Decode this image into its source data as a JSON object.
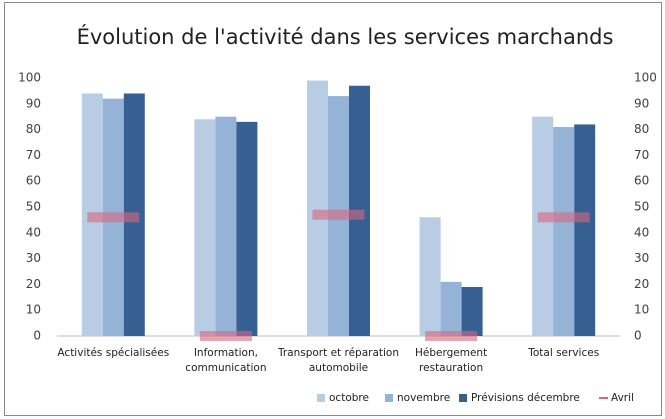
{
  "chart_data": {
    "type": "bar",
    "title": "Évolution de l'activité dans les services marchands",
    "categories": [
      "Activités spécialisées",
      "Information,\ncommunication",
      "Transport et réparation\nautomobile",
      "Hébergement\nrestauration",
      "Total services"
    ],
    "series": [
      {
        "name": "octobre",
        "color": "#b8cce4",
        "values": [
          94,
          84,
          99,
          46,
          85
        ]
      },
      {
        "name": "novembre",
        "color": "#95b3d7",
        "values": [
          92,
          85,
          93,
          21,
          81
        ]
      },
      {
        "name": "Prévisions décembre",
        "color": "#366092",
        "values": [
          94,
          83,
          97,
          19,
          82
        ]
      },
      {
        "name": "Avril",
        "color": "#d9667f",
        "marker": "dash",
        "values": [
          46,
          0,
          47,
          0,
          46
        ]
      }
    ],
    "ylim": [
      0,
      100
    ],
    "yticks": [
      0,
      10,
      20,
      30,
      40,
      50,
      60,
      70,
      80,
      90,
      100
    ],
    "y2lim": [
      0,
      100
    ],
    "y2ticks": [
      0,
      10,
      20,
      30,
      40,
      50,
      60,
      70,
      80,
      90,
      100
    ],
    "grid": false,
    "legend": "bottom-right"
  }
}
